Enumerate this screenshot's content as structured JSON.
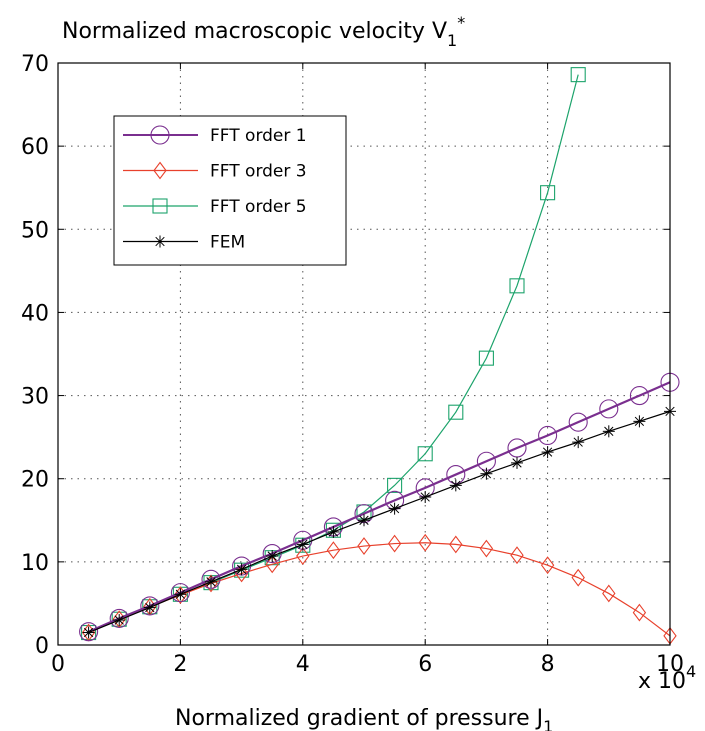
{
  "chart_data": {
    "type": "line",
    "title": "Normalized macroscopic velocity V",
    "title_sub": "1",
    "title_sup": "*",
    "xlabel": "Normalized gradient of pressure J",
    "xlabel_sub": "1",
    "x_multiplier_base": "x 10",
    "x_multiplier_exp": "4",
    "xlim": [
      0,
      10
    ],
    "ylim": [
      0,
      70
    ],
    "xticks": [
      "0",
      "2",
      "4",
      "6",
      "8",
      "10"
    ],
    "yticks": [
      "0",
      "10",
      "20",
      "30",
      "40",
      "50",
      "60",
      "70"
    ],
    "grid": true,
    "legend_position": "upper-left",
    "series": [
      {
        "name": "FFT order 1",
        "color": "#7a2f8f",
        "marker": "circle",
        "x": [
          0.5,
          1,
          1.5,
          2,
          2.5,
          3,
          3.5,
          4,
          4.5,
          5,
          5.5,
          6,
          6.5,
          7,
          7.5,
          8,
          8.5,
          9,
          9.5,
          10
        ],
        "y": [
          1.6,
          3.2,
          4.7,
          6.3,
          7.9,
          9.5,
          11.0,
          12.6,
          14.2,
          15.8,
          17.4,
          18.9,
          20.5,
          22.1,
          23.7,
          25.2,
          26.8,
          28.4,
          30.0,
          31.6
        ]
      },
      {
        "name": "FFT order 3",
        "color": "#e8412c",
        "marker": "diamond",
        "x": [
          0.5,
          1,
          1.5,
          2,
          2.5,
          3,
          3.5,
          4,
          4.5,
          5,
          5.5,
          6,
          6.5,
          7,
          7.5,
          8,
          8.5,
          9,
          9.5,
          10
        ],
        "y": [
          1.5,
          3.1,
          4.6,
          6.0,
          7.4,
          8.6,
          9.7,
          10.7,
          11.4,
          11.9,
          12.2,
          12.3,
          12.1,
          11.6,
          10.8,
          9.6,
          8.1,
          6.2,
          3.9,
          1.1
        ]
      },
      {
        "name": "FFT order 5",
        "color": "#1ca36b",
        "marker": "square",
        "x": [
          0.5,
          1,
          1.5,
          2,
          2.5,
          3,
          3.5,
          4,
          4.5,
          5,
          5.5,
          6,
          6.5,
          7,
          7.5,
          8,
          8.5
        ],
        "y": [
          1.5,
          3.1,
          4.6,
          6.1,
          7.5,
          9.0,
          10.5,
          12.0,
          13.8,
          16.0,
          19.2,
          23.0,
          28.0,
          34.5,
          43.2,
          54.4,
          68.6
        ]
      },
      {
        "name": "FEM",
        "color": "#000000",
        "marker": "asterisk",
        "x": [
          0.5,
          1,
          1.5,
          2,
          2.5,
          3,
          3.5,
          4,
          4.5,
          5,
          5.5,
          6,
          6.5,
          7,
          7.5,
          8,
          8.5,
          9,
          9.5,
          10
        ],
        "y": [
          1.5,
          3.0,
          4.5,
          6.1,
          7.6,
          9.1,
          10.7,
          12.1,
          13.6,
          15.0,
          16.4,
          17.8,
          19.2,
          20.6,
          21.9,
          23.2,
          24.4,
          25.7,
          26.9,
          28.1
        ]
      }
    ]
  }
}
